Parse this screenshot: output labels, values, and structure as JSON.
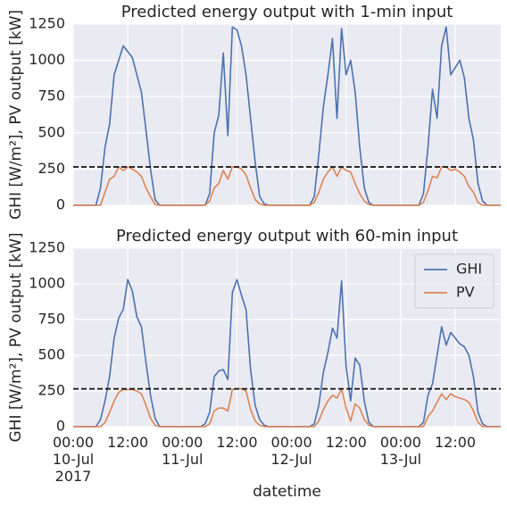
{
  "chart_data": [
    {
      "type": "line",
      "title": "Predicted energy output with 1-min input",
      "ylabel": "GHI [W/m²], PV output [kW]",
      "x": [
        0,
        1,
        2,
        3,
        4,
        5,
        6,
        7,
        8,
        9,
        10,
        11,
        12,
        13,
        14,
        15,
        16,
        17,
        18,
        19,
        20,
        21,
        22,
        23,
        24,
        25,
        26,
        27,
        28,
        29,
        30,
        31,
        32,
        33,
        34,
        35,
        36,
        37,
        38,
        39,
        40,
        41,
        42,
        43,
        44,
        45,
        46,
        47,
        48,
        49,
        50,
        51,
        52,
        53,
        54,
        55,
        56,
        57,
        58,
        59,
        60,
        61,
        62,
        63,
        64,
        65,
        66,
        67,
        68,
        69,
        70,
        71,
        72,
        73,
        74,
        75,
        76,
        77,
        78,
        79,
        80,
        81,
        82,
        83,
        84,
        85,
        86,
        87,
        88,
        89,
        90,
        91,
        92,
        93,
        94
      ],
      "series": [
        {
          "name": "GHI",
          "color": "#4c72b0",
          "values": [
            0,
            0,
            0,
            0,
            0,
            0,
            120,
            400,
            560,
            900,
            1000,
            1100,
            1060,
            1020,
            900,
            780,
            520,
            250,
            40,
            0,
            0,
            0,
            0,
            0,
            0,
            0,
            0,
            0,
            0,
            0,
            80,
            500,
            620,
            1050,
            480,
            1230,
            1210,
            1100,
            900,
            600,
            300,
            60,
            10,
            0,
            0,
            0,
            0,
            0,
            0,
            0,
            0,
            0,
            0,
            60,
            350,
            680,
            900,
            1150,
            600,
            1220,
            900,
            1000,
            780,
            400,
            120,
            20,
            0,
            0,
            0,
            0,
            0,
            0,
            0,
            0,
            0,
            0,
            0,
            80,
            400,
            800,
            600,
            1100,
            1230,
            900,
            950,
            1000,
            880,
            600,
            450,
            150,
            30,
            0,
            0,
            0,
            0
          ]
        },
        {
          "name": "PV",
          "color": "#dd8452",
          "values": [
            0,
            0,
            0,
            0,
            0,
            0,
            0,
            90,
            180,
            200,
            265,
            240,
            265,
            250,
            230,
            200,
            120,
            60,
            5,
            0,
            0,
            0,
            0,
            0,
            0,
            0,
            0,
            0,
            0,
            0,
            30,
            120,
            150,
            240,
            180,
            265,
            265,
            250,
            210,
            120,
            40,
            10,
            0,
            0,
            0,
            0,
            0,
            0,
            0,
            0,
            0,
            0,
            0,
            20,
            90,
            180,
            230,
            265,
            200,
            265,
            240,
            230,
            150,
            80,
            30,
            5,
            0,
            0,
            0,
            0,
            0,
            0,
            0,
            0,
            0,
            0,
            0,
            20,
            100,
            200,
            190,
            265,
            265,
            240,
            250,
            230,
            200,
            130,
            90,
            20,
            0,
            0,
            0,
            0,
            0
          ]
        }
      ],
      "hline": 265,
      "xlim": [
        0,
        94
      ],
      "ylim": [
        0,
        1250
      ],
      "yticks": [
        0,
        250,
        500,
        750,
        1000,
        1250
      ],
      "grid": true
    },
    {
      "type": "line",
      "title": "Predicted energy output with 60-min input",
      "ylabel": "GHI [W/m²], PV output [kW]",
      "xlabel": "datetime",
      "x": [
        0,
        1,
        2,
        3,
        4,
        5,
        6,
        7,
        8,
        9,
        10,
        11,
        12,
        13,
        14,
        15,
        16,
        17,
        18,
        19,
        20,
        21,
        22,
        23,
        24,
        25,
        26,
        27,
        28,
        29,
        30,
        31,
        32,
        33,
        34,
        35,
        36,
        37,
        38,
        39,
        40,
        41,
        42,
        43,
        44,
        45,
        46,
        47,
        48,
        49,
        50,
        51,
        52,
        53,
        54,
        55,
        56,
        57,
        58,
        59,
        60,
        61,
        62,
        63,
        64,
        65,
        66,
        67,
        68,
        69,
        70,
        71,
        72,
        73,
        74,
        75,
        76,
        77,
        78,
        79,
        80,
        81,
        82,
        83,
        84,
        85,
        86,
        87,
        88,
        89,
        90,
        91,
        92,
        93,
        94
      ],
      "series": [
        {
          "name": "GHI",
          "color": "#4c72b0",
          "values": [
            0,
            0,
            0,
            0,
            0,
            0,
            50,
            180,
            350,
            620,
            760,
            820,
            1030,
            950,
            770,
            700,
            450,
            220,
            60,
            0,
            0,
            0,
            0,
            0,
            0,
            0,
            0,
            0,
            0,
            20,
            100,
            350,
            390,
            400,
            330,
            940,
            1030,
            920,
            820,
            400,
            150,
            50,
            10,
            0,
            0,
            0,
            0,
            0,
            0,
            0,
            0,
            0,
            0,
            20,
            150,
            380,
            520,
            690,
            620,
            1020,
            420,
            180,
            480,
            430,
            180,
            30,
            0,
            0,
            0,
            0,
            0,
            0,
            0,
            0,
            0,
            0,
            0,
            30,
            220,
            300,
            500,
            700,
            570,
            660,
            620,
            580,
            560,
            500,
            350,
            100,
            20,
            0,
            0,
            0,
            0
          ]
        },
        {
          "name": "PV",
          "color": "#dd8452",
          "values": [
            0,
            0,
            0,
            0,
            0,
            0,
            0,
            30,
            100,
            180,
            240,
            260,
            260,
            260,
            250,
            230,
            150,
            60,
            10,
            0,
            0,
            0,
            0,
            0,
            0,
            0,
            0,
            0,
            0,
            0,
            20,
            110,
            130,
            130,
            110,
            260,
            265,
            265,
            250,
            120,
            40,
            10,
            0,
            0,
            0,
            0,
            0,
            0,
            0,
            0,
            0,
            0,
            0,
            0,
            40,
            120,
            180,
            220,
            200,
            265,
            130,
            40,
            160,
            130,
            50,
            10,
            0,
            0,
            0,
            0,
            0,
            0,
            0,
            0,
            0,
            0,
            0,
            0,
            70,
            110,
            170,
            230,
            190,
            230,
            210,
            200,
            190,
            170,
            110,
            30,
            0,
            0,
            0,
            0,
            0
          ]
        }
      ],
      "hline": 265,
      "legend": "upper right",
      "xlim": [
        0,
        94
      ],
      "xticks": [
        {
          "value": 0,
          "label": "00:00\n10-Jul\n2017"
        },
        {
          "value": 12,
          "label": "12:00"
        },
        {
          "value": 24,
          "label": "00:00\n11-Jul"
        },
        {
          "value": 36,
          "label": "12:00"
        },
        {
          "value": 48,
          "label": "00:00\n12-Jul"
        },
        {
          "value": 60,
          "label": "12:00"
        },
        {
          "value": 72,
          "label": "00:00\n13-Jul"
        },
        {
          "value": 84,
          "label": "12:00"
        }
      ],
      "ylim": [
        0,
        1250
      ],
      "yticks": [
        0,
        250,
        500,
        750,
        1000,
        1250
      ],
      "grid": true
    }
  ]
}
